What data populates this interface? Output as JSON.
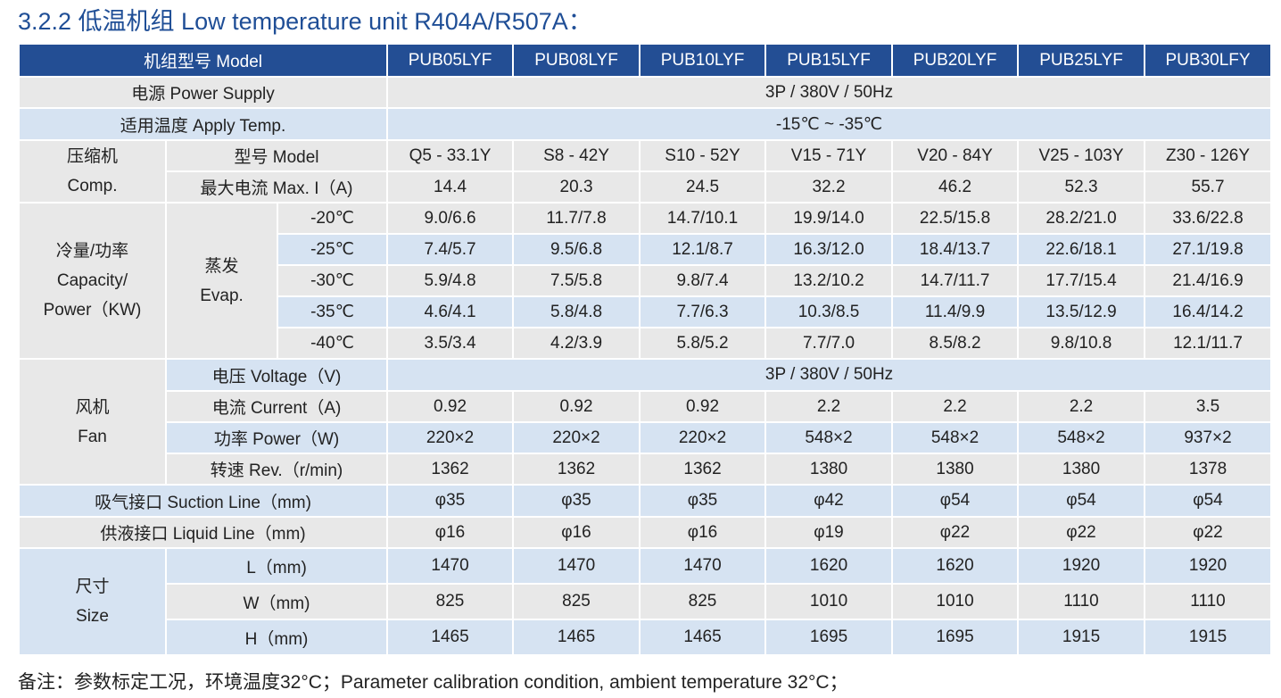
{
  "title": "3.2.2 低温机组 Low temperature unit  R404A/R507A：",
  "header": {
    "label": "机组型号 Model",
    "models": [
      "PUB05LYF",
      "PUB08LYF",
      "PUB10LYF",
      "PUB15LYF",
      "PUB20LYF",
      "PUB25LYF",
      "PUB30LFY"
    ]
  },
  "power_supply": {
    "label": "电源 Power Supply",
    "value": "3P / 380V / 50Hz"
  },
  "apply_temp": {
    "label": "适用温度 Apply Temp.",
    "value": "-15℃ ~ -35℃"
  },
  "compressor": {
    "group_zh": "压缩机",
    "group_en": "Comp.",
    "model_label": "型号 Model",
    "models": [
      "Q5 - 33.1Y",
      "S8 - 42Y",
      "S10 - 52Y",
      "V15 - 71Y",
      "V20 - 84Y",
      "V25 - 103Y",
      "Z30 - 126Y"
    ],
    "current_label": "最大电流 Max. I（A)",
    "currents": [
      "14.4",
      "20.3",
      "24.5",
      "32.2",
      "46.2",
      "52.3",
      "55.7"
    ]
  },
  "capacity": {
    "group_zh": "冷量/功率",
    "group_en1": "Capacity/",
    "group_en2": "Power（KW)",
    "evap_zh": "蒸发",
    "evap_en": "Evap.",
    "rows": [
      {
        "temp": "-20℃",
        "values": [
          "9.0/6.6",
          "11.7/7.8",
          "14.7/10.1",
          "19.9/14.0",
          "22.5/15.8",
          "28.2/21.0",
          "33.6/22.8"
        ]
      },
      {
        "temp": "-25℃",
        "values": [
          "7.4/5.7",
          "9.5/6.8",
          "12.1/8.7",
          "16.3/12.0",
          "18.4/13.7",
          "22.6/18.1",
          "27.1/19.8"
        ]
      },
      {
        "temp": "-30℃",
        "values": [
          "5.9/4.8",
          "7.5/5.8",
          "9.8/7.4",
          "13.2/10.2",
          "14.7/11.7",
          "17.7/15.4",
          "21.4/16.9"
        ]
      },
      {
        "temp": "-35℃",
        "values": [
          "4.6/4.1",
          "5.8/4.8",
          "7.7/6.3",
          "10.3/8.5",
          "11.4/9.9",
          "13.5/12.9",
          "16.4/14.2"
        ]
      },
      {
        "temp": "-40℃",
        "values": [
          "3.5/3.4",
          "4.2/3.9",
          "5.8/5.2",
          "7.7/7.0",
          "8.5/8.2",
          "9.8/10.8",
          "12.1/11.7"
        ]
      }
    ]
  },
  "fan": {
    "group_zh": "风机",
    "group_en": "Fan",
    "voltage_label": "电压 Voltage（V)",
    "voltage_value": "3P / 380V / 50Hz",
    "current_label": "电流 Current（A)",
    "currents": [
      "0.92",
      "0.92",
      "0.92",
      "2.2",
      "2.2",
      "2.2",
      "3.5"
    ],
    "power_label": "功率 Power（W)",
    "powers": [
      "220×2",
      "220×2",
      "220×2",
      "548×2",
      "548×2",
      "548×2",
      "937×2"
    ],
    "rev_label": "转速 Rev.（r/min)",
    "revs": [
      "1362",
      "1362",
      "1362",
      "1380",
      "1380",
      "1380",
      "1378"
    ]
  },
  "suction": {
    "label": "吸气接口 Suction Line（mm)",
    "values": [
      "φ35",
      "φ35",
      "φ35",
      "φ42",
      "φ54",
      "φ54",
      "φ54"
    ]
  },
  "liquid": {
    "label": "供液接口 Liquid Line（mm)",
    "values": [
      "φ16",
      "φ16",
      "φ16",
      "φ19",
      "φ22",
      "φ22",
      "φ22"
    ]
  },
  "size": {
    "group_zh": "尺寸",
    "group_en": "Size",
    "rows": [
      {
        "label": "L（mm)",
        "values": [
          "1470",
          "1470",
          "1470",
          "1620",
          "1620",
          "1920",
          "1920"
        ]
      },
      {
        "label": "W（mm)",
        "values": [
          "825",
          "825",
          "825",
          "1010",
          "1010",
          "1110",
          "1110"
        ]
      },
      {
        "label": "H（mm)",
        "values": [
          "1465",
          "1465",
          "1465",
          "1695",
          "1695",
          "1915",
          "1915"
        ]
      }
    ]
  },
  "note": "备注：参数标定工况，环境温度32°C；Parameter calibration condition, ambient temperature 32°C；"
}
